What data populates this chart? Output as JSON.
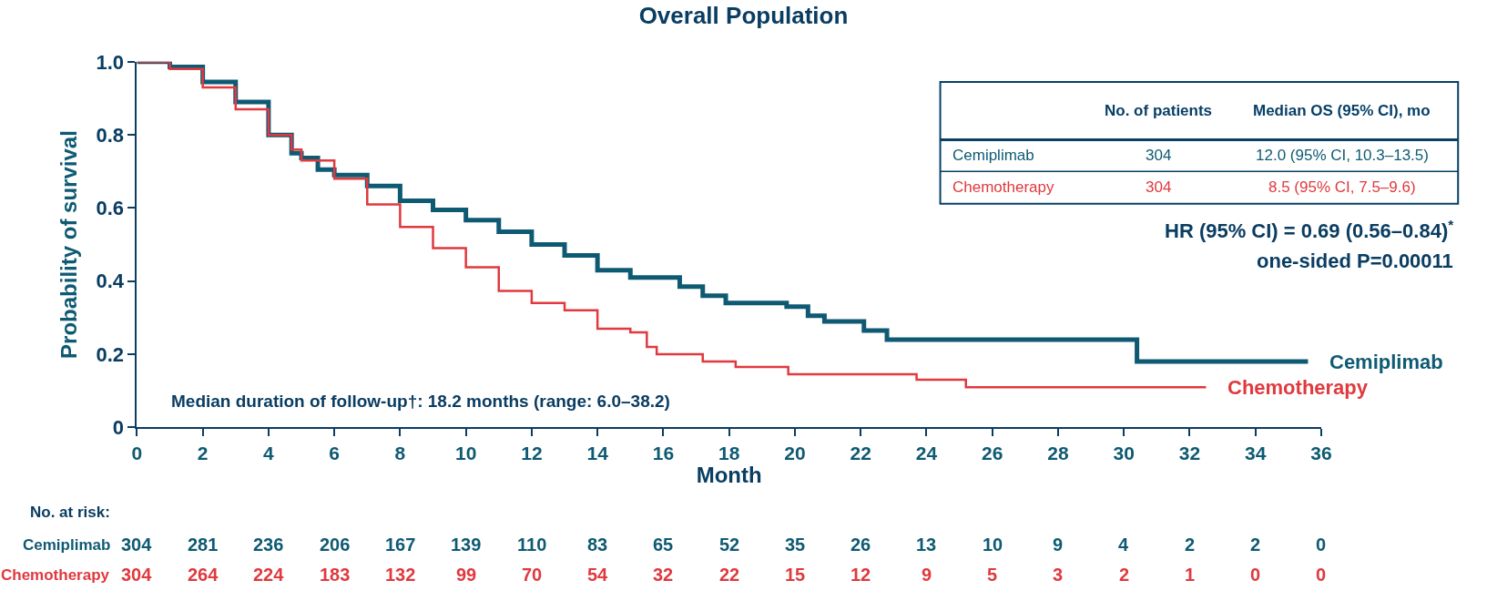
{
  "chart_data": {
    "type": "step",
    "title": "Overall Population",
    "xlabel": "Month",
    "ylabel": "Probability of survival",
    "xlim": [
      0,
      36
    ],
    "xticks": [
      0,
      2,
      4,
      6,
      8,
      10,
      12,
      14,
      16,
      18,
      20,
      22,
      24,
      26,
      28,
      30,
      32,
      34,
      36
    ],
    "ylim": [
      0,
      1.0
    ],
    "yticks": [
      {
        "value": 0,
        "label": "0"
      },
      0.2,
      0.4,
      0.6,
      0.8,
      {
        "value": 1.0,
        "label": "1.0"
      }
    ],
    "legend": false,
    "marker": "none",
    "line_style": "solid",
    "series": [
      {
        "name": "Cemiplimab",
        "color": "#0e5a73",
        "x": [
          0,
          1,
          2,
          3,
          4,
          4.7,
          5,
          5.5,
          6,
          7,
          8,
          9,
          10,
          11,
          12,
          13,
          14,
          15,
          16.5,
          17.2,
          17.9,
          19.75,
          20.4,
          20.9,
          22.1,
          22.8,
          30.4,
          35.6
        ],
        "values": [
          1.0,
          0.986,
          0.945,
          0.89,
          0.8,
          0.75,
          0.737,
          0.705,
          0.69,
          0.66,
          0.62,
          0.595,
          0.567,
          0.535,
          0.5,
          0.47,
          0.43,
          0.41,
          0.385,
          0.36,
          0.34,
          0.33,
          0.305,
          0.29,
          0.265,
          0.24,
          0.18,
          0.18
        ]
      },
      {
        "name": "Chemotherapy",
        "color": "#e0393e",
        "x": [
          0,
          1,
          2,
          3,
          4,
          4.7,
          5,
          6,
          7,
          8,
          9,
          10,
          11,
          12,
          13,
          14,
          15,
          15.5,
          15.8,
          17.2,
          18.2,
          19.8,
          23.7,
          25.2,
          32.5
        ],
        "values": [
          1.0,
          0.98,
          0.93,
          0.87,
          0.8,
          0.76,
          0.73,
          0.68,
          0.61,
          0.548,
          0.49,
          0.438,
          0.373,
          0.34,
          0.32,
          0.27,
          0.26,
          0.22,
          0.2,
          0.18,
          0.165,
          0.145,
          0.13,
          0.11,
          0.11
        ]
      }
    ],
    "annotations": [
      "Median duration of follow-up†: 18.2 months (range: 6.0–38.2)",
      "HR (95% CI) = 0.69 (0.56–0.84)$^{*}$",
      "one-sided P=0.00011",
      "No. of patients",
      "Median OS (95% CI), mo",
      "Cemiplimab",
      "304",
      "12.0 (95% CI, 10.3–13.5)",
      "Chemotherapy",
      "304",
      "8.5 (95% CI, 7.5–9.6)",
      "No. at risk:",
      "Cemiplimab",
      "304",
      "281",
      "236",
      "206",
      "167",
      "139",
      "110",
      "83",
      "65",
      "52",
      "35",
      "26",
      "13",
      "10",
      "9",
      "4",
      "2",
      "2",
      "0",
      "Chemotherapy",
      "304",
      "264",
      "224",
      "183",
      "132",
      "99",
      "70",
      "54",
      "32",
      "22",
      "15",
      "12",
      "9",
      "5",
      "3",
      "2",
      "1",
      "0",
      "0"
    ]
  }
}
